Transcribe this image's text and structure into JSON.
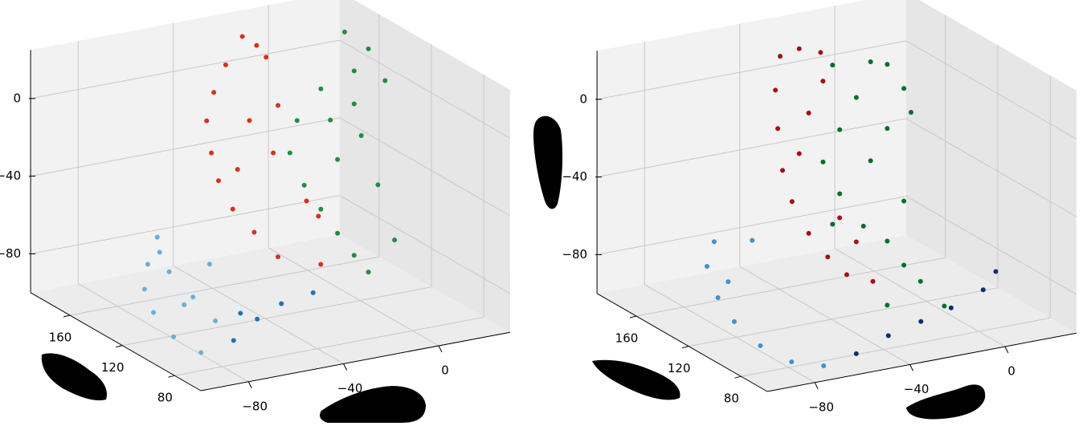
{
  "chart_data": [
    {
      "type": "scatter3d",
      "grid": true,
      "xlim": [
        -100,
        30
      ],
      "ylim": [
        60,
        190
      ],
      "zlim": [
        -100,
        25
      ],
      "xticks": [
        {
          "value": -80,
          "label": "−80"
        },
        {
          "value": -40,
          "label": "−40"
        },
        0
      ],
      "yticks": [
        80,
        120,
        160
      ],
      "zticks": [
        {
          "value": -80,
          "label": "−80"
        },
        {
          "value": -40,
          "label": "−40"
        },
        0
      ],
      "series": [
        {
          "color": "#6baed6",
          "x": [
            -55,
            -59,
            -62,
            -72,
            -79,
            -79,
            -57,
            -58,
            -50,
            -51,
            -33,
            -54
          ],
          "y": [
            175,
            175,
            172,
            147,
            119,
            98,
            127,
            149,
            175,
            155,
            175,
            175
          ],
          "z": [
            -76,
            -89,
            -100,
            -100,
            -100,
            -100,
            -100,
            -100,
            -95,
            -100,
            -95,
            -84
          ]
        },
        {
          "color": "#2171b5",
          "x": [
            -62,
            -46,
            -32,
            -17,
            -47
          ],
          "y": [
            104,
            115,
            122,
            125,
            126
          ],
          "z": [
            -100,
            -97,
            -95,
            -94,
            -98
          ]
        },
        {
          "color": "#d7301f",
          "x": [
            -33,
            -27,
            -40,
            -45,
            -48,
            -46,
            -43,
            -37,
            -28,
            -18,
            0,
            -1,
            -20,
            -18,
            -30,
            -35,
            -6,
            -23
          ],
          "y": [
            150,
            150,
            150,
            150,
            150,
            150,
            150,
            150,
            150,
            150,
            150,
            150,
            150,
            150,
            150,
            150,
            150,
            150
          ],
          "z": [
            32,
            26,
            19,
            6,
            -8,
            -25,
            -40,
            -56,
            -70,
            -85,
            -93,
            -68,
            -31,
            -7,
            -12,
            -36,
            -59,
            19
          ]
        },
        {
          "color": "#238b45",
          "x": [
            -12,
            -2,
            5,
            -8,
            -22,
            -32,
            -35,
            -29,
            -22,
            -15,
            -8,
            -2,
            9,
            2,
            -5,
            -15,
            -18,
            -8
          ],
          "y": [
            110,
            110,
            110,
            110,
            110,
            110,
            110,
            110,
            110,
            110,
            110,
            110,
            110,
            110,
            110,
            110,
            110,
            110
          ],
          "z": [
            45,
            34,
            16,
            24,
            18,
            4,
            -12,
            -30,
            -44,
            -58,
            -71,
            -81,
            -67,
            -37,
            -10,
            -20,
            1,
            7
          ]
        }
      ]
    },
    {
      "type": "scatter3d",
      "grid": true,
      "xlim": [
        -100,
        30
      ],
      "ylim": [
        60,
        190
      ],
      "zlim": [
        -100,
        25
      ],
      "xticks": [
        {
          "value": -80,
          "label": "−80"
        },
        {
          "value": -40,
          "label": "−40"
        },
        0
      ],
      "yticks": [
        80,
        120,
        160
      ],
      "zticks": [
        {
          "value": -80,
          "label": "−80"
        },
        {
          "value": -40,
          "label": "−40"
        },
        0
      ],
      "series": [
        {
          "color": "#4292c6",
          "x": [
            -59,
            -43,
            -62,
            -52,
            -64,
            -72,
            -77,
            -76,
            -68
          ],
          "y": [
            175,
            175,
            175,
            177,
            163,
            136,
            107,
            85,
            75
          ],
          "z": [
            -77,
            -80,
            -89,
            -100,
            -100,
            -100,
            -100,
            -100,
            -100
          ]
        },
        {
          "color": "#08306b",
          "x": [
            -51,
            -32,
            -15,
            1,
            20,
            33
          ],
          "y": [
            81,
            91,
            97,
            103,
            113,
            127
          ],
          "z": [
            -100,
            -99,
            -98,
            -97,
            -96,
            -95
          ]
        },
        {
          "color": "#a50f15",
          "x": [
            -45,
            -37,
            -28,
            -47,
            -46,
            -44,
            -40,
            -33,
            -25,
            -17,
            -6,
            -33,
            -37,
            -27,
            -20,
            -13
          ],
          "y": [
            150,
            150,
            150,
            150,
            150,
            150,
            150,
            150,
            150,
            150,
            150,
            150,
            150,
            150,
            150,
            150
          ],
          "z": [
            25,
            27,
            23,
            8,
            -12,
            -34,
            -51,
            -69,
            -83,
            -94,
            -100,
            -7,
            -27,
            8,
            -64,
            -78
          ]
        },
        {
          "color": "#006d2c",
          "x": [
            -45,
            -29,
            -22,
            -15,
            -12,
            -35,
            -42,
            -49,
            -42,
            -32,
            -22,
            -15,
            -8,
            -22,
            2,
            -29,
            -22,
            -15,
            -45
          ],
          "y": [
            110,
            110,
            110,
            110,
            110,
            110,
            110,
            110,
            110,
            110,
            110,
            110,
            110,
            110,
            110,
            110,
            110,
            110,
            110
          ],
          "z": [
            36,
            34,
            31,
            17,
            4,
            17,
            2,
            -13,
            -31,
            -50,
            -60,
            -74,
            -84,
            -93,
            -99,
            -17,
            -2,
            -41,
            -46
          ]
        }
      ]
    }
  ]
}
